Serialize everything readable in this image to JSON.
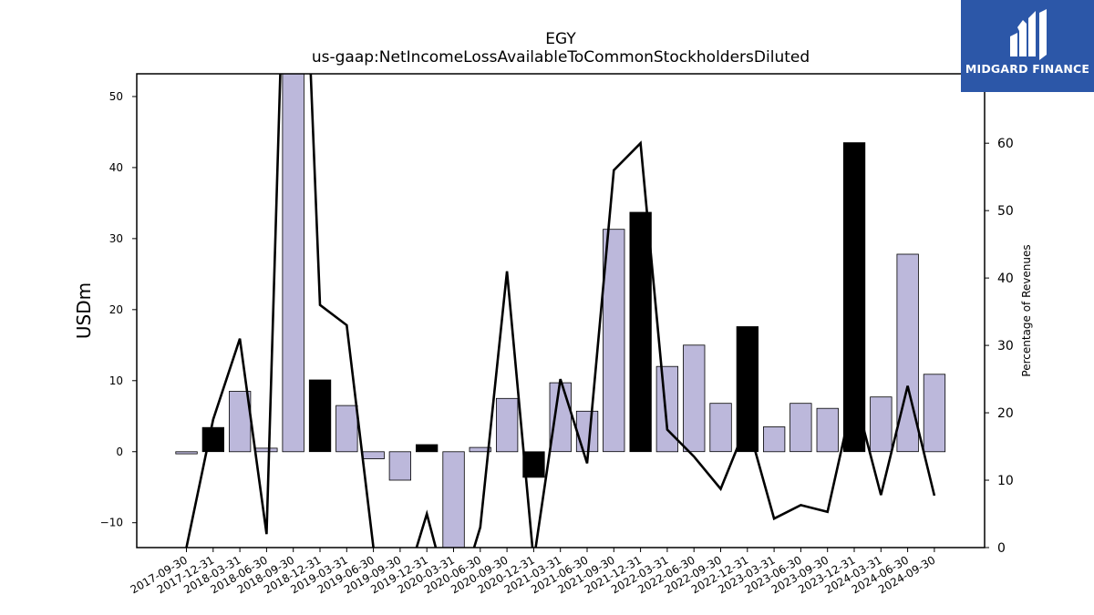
{
  "chart_data": {
    "type": "bar",
    "title": "EGY",
    "subtitle": "us-gaap:NetIncomeLossAvailableToCommonStockholdersDiluted",
    "ylabel": "USDm",
    "y2label": "Percentage of Revenues",
    "ylim": [
      -13.5,
      53.2
    ],
    "y2lim": [
      0,
      70.3
    ],
    "yticks": [
      -10,
      0,
      10,
      20,
      30,
      40,
      50
    ],
    "y2ticks": [
      0,
      10,
      20,
      30,
      40,
      50,
      60,
      70
    ],
    "categories": [
      "2017-09-30",
      "2017-12-31",
      "2018-03-31",
      "2018-06-30",
      "2018-09-30",
      "2018-12-31",
      "2019-03-31",
      "2019-06-30",
      "2019-09-30",
      "2019-12-31",
      "2020-03-31",
      "2020-06-30",
      "2020-09-30",
      "2020-12-31",
      "2021-03-31",
      "2021-06-30",
      "2021-09-30",
      "2021-12-31",
      "2022-03-31",
      "2022-06-30",
      "2022-09-30",
      "2022-12-31",
      "2023-03-31",
      "2023-06-30",
      "2023-09-30",
      "2023-12-31",
      "2024-03-31",
      "2024-06-30",
      "2024-09-30"
    ],
    "series": [
      {
        "type": "bar",
        "values": [
          -0.3,
          3.4,
          8.5,
          0.5,
          53.2,
          10.1,
          6.5,
          -1.0,
          -4.0,
          1.0,
          -13.5,
          0.6,
          7.5,
          -3.6,
          9.7,
          5.7,
          31.3,
          33.7,
          12.0,
          15.0,
          6.8,
          17.6,
          3.5,
          6.8,
          6.1,
          43.5,
          7.7,
          27.8,
          10.9
        ],
        "highlight": [
          false,
          true,
          false,
          false,
          false,
          true,
          false,
          false,
          false,
          true,
          false,
          false,
          false,
          true,
          false,
          false,
          false,
          true,
          false,
          false,
          false,
          true,
          false,
          false,
          false,
          true,
          false,
          false,
          false
        ],
        "colors": {
          "normal": "#bcb8db",
          "highlight": "#000000",
          "edge": "#000000"
        }
      },
      {
        "type": "line",
        "axis": "right",
        "values": [
          0,
          19,
          31,
          2,
          135,
          36,
          33,
          0,
          -8,
          5,
          -10,
          3,
          41,
          -2,
          25,
          12.5,
          56,
          60,
          17.5,
          13.5,
          8.7,
          18.5,
          4.3,
          6.3,
          5.3,
          23,
          7.8,
          24,
          7.7
        ],
        "color": "#000000"
      }
    ],
    "grid": false
  },
  "logo": {
    "name": "MIDGARD FINANCE",
    "bg": "#2c57a8",
    "fg": "#ffffff"
  }
}
